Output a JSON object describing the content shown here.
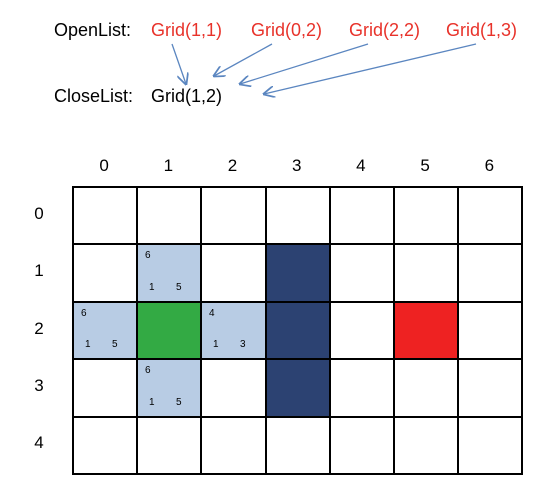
{
  "open_list": {
    "label": "OpenList:",
    "items": [
      "Grid(1,1)",
      "Grid(0,2)",
      "Grid(2,2)",
      "Grid(1,3)"
    ]
  },
  "close_list": {
    "label": "CloseList:",
    "items": [
      "Grid(1,2)"
    ]
  },
  "grid": {
    "columns": [
      "0",
      "1",
      "2",
      "3",
      "4",
      "5",
      "6"
    ],
    "rows": [
      "0",
      "1",
      "2",
      "3",
      "4"
    ],
    "cells": [
      {
        "col": 1,
        "row": 1,
        "type": "open",
        "f": "6",
        "g": "1",
        "h": "5"
      },
      {
        "col": 0,
        "row": 2,
        "type": "open",
        "f": "6",
        "g": "1",
        "h": "5"
      },
      {
        "col": 2,
        "row": 2,
        "type": "open",
        "f": "4",
        "g": "1",
        "h": "3"
      },
      {
        "col": 1,
        "row": 3,
        "type": "open",
        "f": "6",
        "g": "1",
        "h": "5"
      },
      {
        "col": 1,
        "row": 2,
        "type": "start"
      },
      {
        "col": 5,
        "row": 2,
        "type": "goal"
      },
      {
        "col": 3,
        "row": 1,
        "type": "wall"
      },
      {
        "col": 3,
        "row": 2,
        "type": "wall"
      },
      {
        "col": 3,
        "row": 3,
        "type": "wall"
      }
    ]
  },
  "colors": {
    "open": "#b8cce4",
    "start": "#33aa44",
    "goal": "#ee2222",
    "wall": "#2c4272",
    "empty": "#ffffff",
    "arrow": "#5b86c0"
  }
}
